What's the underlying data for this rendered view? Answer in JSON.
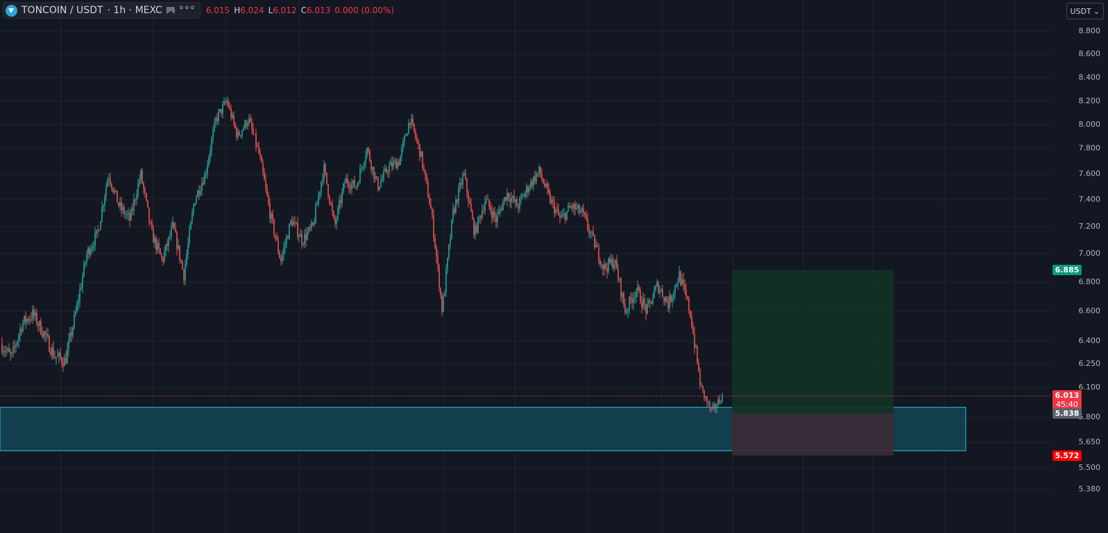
{
  "header": {
    "symbol": "TONCOIN / USDT",
    "interval": "· 1h · MEXC",
    "more": "°°°",
    "ohlc": [
      {
        "k": "",
        "v": "6.015"
      },
      {
        "k": "H",
        "v": "6.024"
      },
      {
        "k": "L",
        "v": "6.012"
      },
      {
        "k": "C",
        "v": "6.013"
      },
      {
        "k": "",
        "v": "0.000 (0.00%)"
      }
    ]
  },
  "currency_button": {
    "label": "USDT",
    "chevron": "chevron-down-icon"
  },
  "price_axis": [
    {
      "label": "8.800",
      "price": 8.8
    },
    {
      "label": "8.600",
      "price": 8.6
    },
    {
      "label": "8.400",
      "price": 8.4
    },
    {
      "label": "8.200",
      "price": 8.2
    },
    {
      "label": "8.000",
      "price": 8.0
    },
    {
      "label": "7.800",
      "price": 7.8
    },
    {
      "label": "7.600",
      "price": 7.6
    },
    {
      "label": "7.400",
      "price": 7.4
    },
    {
      "label": "7.200",
      "price": 7.2
    },
    {
      "label": "7.000",
      "price": 7.0
    },
    {
      "label": "6.800",
      "price": 6.8
    },
    {
      "label": "6.600",
      "price": 6.6
    },
    {
      "label": "6.400",
      "price": 6.4
    },
    {
      "label": "6.250",
      "price": 6.25
    },
    {
      "label": "6.100",
      "price": 6.1
    },
    {
      "label": "5.800",
      "price": 5.8
    },
    {
      "label": "5.650",
      "price": 5.65
    },
    {
      "label": "5.500",
      "price": 5.5
    },
    {
      "label": "5.380",
      "price": 5.38
    }
  ],
  "tags": {
    "target": {
      "label": "6.885",
      "price": 6.885,
      "color": "#089981"
    },
    "last": {
      "label": "6.013",
      "countdown": "45:40",
      "price": 6.013,
      "color": "#f23645"
    },
    "entry": {
      "label": "5.838",
      "price": 5.838,
      "color": "#5d606b"
    },
    "stop": {
      "label": "5.572",
      "price": 5.572,
      "color": "#ff0000"
    }
  },
  "colors": {
    "background": "#131722",
    "grid": "#1f2430",
    "up": "#26a69a",
    "down": "#ef5350",
    "zone_fill": "#134556",
    "zone_border": "#26c6da",
    "profit_fill": "#133226",
    "loss_fill": "#3c2b36"
  },
  "chart_data": {
    "type": "candlestick",
    "symbol": "TONCOIN / USDT",
    "interval": "1h",
    "exchange": "MEXC",
    "ylim": [
      5.3,
      8.9
    ],
    "last_price": 6.013,
    "close_path": [
      {
        "t": 0,
        "price": 6.38
      },
      {
        "t": 1,
        "price": 6.29
      },
      {
        "t": 2,
        "price": 6.52
      },
      {
        "t": 3,
        "price": 6.58
      },
      {
        "t": 4,
        "price": 6.45
      },
      {
        "t": 5,
        "price": 6.3
      },
      {
        "t": 6,
        "price": 6.27
      },
      {
        "t": 7,
        "price": 6.6
      },
      {
        "t": 8,
        "price": 7.0
      },
      {
        "t": 9,
        "price": 7.15
      },
      {
        "t": 10,
        "price": 7.6
      },
      {
        "t": 11,
        "price": 7.35
      },
      {
        "t": 12,
        "price": 7.25
      },
      {
        "t": 13,
        "price": 7.6
      },
      {
        "t": 14,
        "price": 7.15
      },
      {
        "t": 15,
        "price": 6.95
      },
      {
        "t": 16,
        "price": 7.2
      },
      {
        "t": 17,
        "price": 6.85
      },
      {
        "t": 18,
        "price": 7.4
      },
      {
        "t": 19,
        "price": 7.6
      },
      {
        "t": 20,
        "price": 8.05
      },
      {
        "t": 21,
        "price": 8.2
      },
      {
        "t": 22,
        "price": 7.9
      },
      {
        "t": 23,
        "price": 8.05
      },
      {
        "t": 24,
        "price": 7.75
      },
      {
        "t": 25,
        "price": 7.3
      },
      {
        "t": 26,
        "price": 6.95
      },
      {
        "t": 27,
        "price": 7.25
      },
      {
        "t": 28,
        "price": 7.1
      },
      {
        "t": 29,
        "price": 7.2
      },
      {
        "t": 30,
        "price": 7.65
      },
      {
        "t": 31,
        "price": 7.2
      },
      {
        "t": 32,
        "price": 7.55
      },
      {
        "t": 33,
        "price": 7.5
      },
      {
        "t": 34,
        "price": 7.8
      },
      {
        "t": 35,
        "price": 7.5
      },
      {
        "t": 36,
        "price": 7.65
      },
      {
        "t": 37,
        "price": 7.7
      },
      {
        "t": 38,
        "price": 8.05
      },
      {
        "t": 39,
        "price": 7.75
      },
      {
        "t": 40,
        "price": 7.3
      },
      {
        "t": 41,
        "price": 6.6
      },
      {
        "t": 42,
        "price": 7.3
      },
      {
        "t": 43,
        "price": 7.6
      },
      {
        "t": 44,
        "price": 7.15
      },
      {
        "t": 45,
        "price": 7.4
      },
      {
        "t": 46,
        "price": 7.25
      },
      {
        "t": 47,
        "price": 7.45
      },
      {
        "t": 48,
        "price": 7.35
      },
      {
        "t": 49,
        "price": 7.5
      },
      {
        "t": 50,
        "price": 7.62
      },
      {
        "t": 51,
        "price": 7.4
      },
      {
        "t": 52,
        "price": 7.25
      },
      {
        "t": 53,
        "price": 7.35
      },
      {
        "t": 54,
        "price": 7.3
      },
      {
        "t": 55,
        "price": 7.1
      },
      {
        "t": 56,
        "price": 6.9
      },
      {
        "t": 57,
        "price": 6.95
      },
      {
        "t": 58,
        "price": 6.6
      },
      {
        "t": 59,
        "price": 6.75
      },
      {
        "t": 60,
        "price": 6.6
      },
      {
        "t": 61,
        "price": 6.78
      },
      {
        "t": 62,
        "price": 6.65
      },
      {
        "t": 63,
        "price": 6.85
      },
      {
        "t": 64,
        "price": 6.6
      },
      {
        "t": 65,
        "price": 6.1
      },
      {
        "t": 66,
        "price": 5.85
      },
      {
        "t": 67,
        "price": 6.013
      }
    ],
    "drawings": {
      "demand_zone": {
        "top": 5.9,
        "bottom": 5.6
      },
      "long_position": {
        "entry": 5.838,
        "target": 6.885,
        "stop": 5.572
      }
    }
  }
}
